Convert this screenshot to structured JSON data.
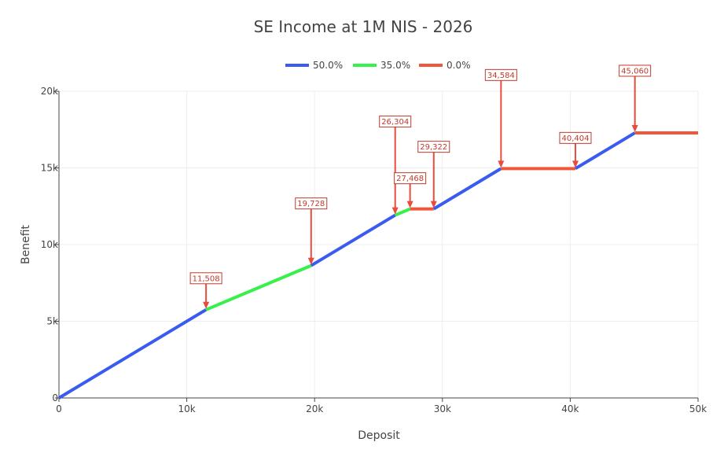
{
  "chart_data": {
    "type": "line",
    "title": "SE Income at 1M NIS - 2026",
    "xlabel": "Deposit",
    "ylabel": "Benefit",
    "xlim": [
      0,
      50000
    ],
    "ylim": [
      0,
      20000
    ],
    "x_ticks": [
      0,
      10000,
      20000,
      30000,
      40000,
      50000
    ],
    "x_tick_labels": [
      "0",
      "10k",
      "20k",
      "30k",
      "40k",
      "50k"
    ],
    "y_ticks": [
      0,
      5000,
      10000,
      15000,
      20000
    ],
    "y_tick_labels": [
      "0",
      "5k",
      "10k",
      "15k",
      "20k"
    ],
    "grid": true,
    "legend_position": "top",
    "legend": [
      {
        "name": "50.0%",
        "color": "#3a5bf0"
      },
      {
        "name": "35.0%",
        "color": "#38f04a"
      },
      {
        "name": "0.0%",
        "color": "#f0573a"
      }
    ],
    "segments": [
      {
        "series": "50.0%",
        "x": [
          0,
          11508
        ],
        "y": [
          0,
          5754
        ]
      },
      {
        "series": "35.0%",
        "x": [
          11508,
          19728
        ],
        "y": [
          5754,
          8631
        ]
      },
      {
        "series": "50.0%",
        "x": [
          19728,
          26304
        ],
        "y": [
          8631,
          11919
        ]
      },
      {
        "series": "35.0%",
        "x": [
          26304,
          27468
        ],
        "y": [
          11919,
          12326
        ]
      },
      {
        "series": "0.0%",
        "x": [
          27468,
          29322
        ],
        "y": [
          12326,
          12326
        ]
      },
      {
        "series": "50.0%",
        "x": [
          29322,
          34584
        ],
        "y": [
          12326,
          14957
        ]
      },
      {
        "series": "0.0%",
        "x": [
          34584,
          40404
        ],
        "y": [
          14957,
          14957
        ]
      },
      {
        "series": "50.0%",
        "x": [
          40404,
          45060
        ],
        "y": [
          14957,
          17285
        ]
      },
      {
        "series": "0.0%",
        "x": [
          45060,
          50000
        ],
        "y": [
          17285,
          17285
        ]
      }
    ],
    "annotations": [
      {
        "label": "11,508",
        "x": 11508,
        "y": 5754,
        "arrow_len": 33
      },
      {
        "label": "19,728",
        "x": 19728,
        "y": 8631,
        "arrow_len": 72
      },
      {
        "label": "26,304",
        "x": 26304,
        "y": 11919,
        "arrow_len": 112
      },
      {
        "label": "27,468",
        "x": 27468,
        "y": 12326,
        "arrow_len": 32
      },
      {
        "label": "29,322",
        "x": 29322,
        "y": 12326,
        "arrow_len": 72
      },
      {
        "label": "34,584",
        "x": 34584,
        "y": 14957,
        "arrow_len": 112
      },
      {
        "label": "40,404",
        "x": 40404,
        "y": 14957,
        "arrow_len": 32
      },
      {
        "label": "45,060",
        "x": 45060,
        "y": 17285,
        "arrow_len": 72
      }
    ]
  }
}
